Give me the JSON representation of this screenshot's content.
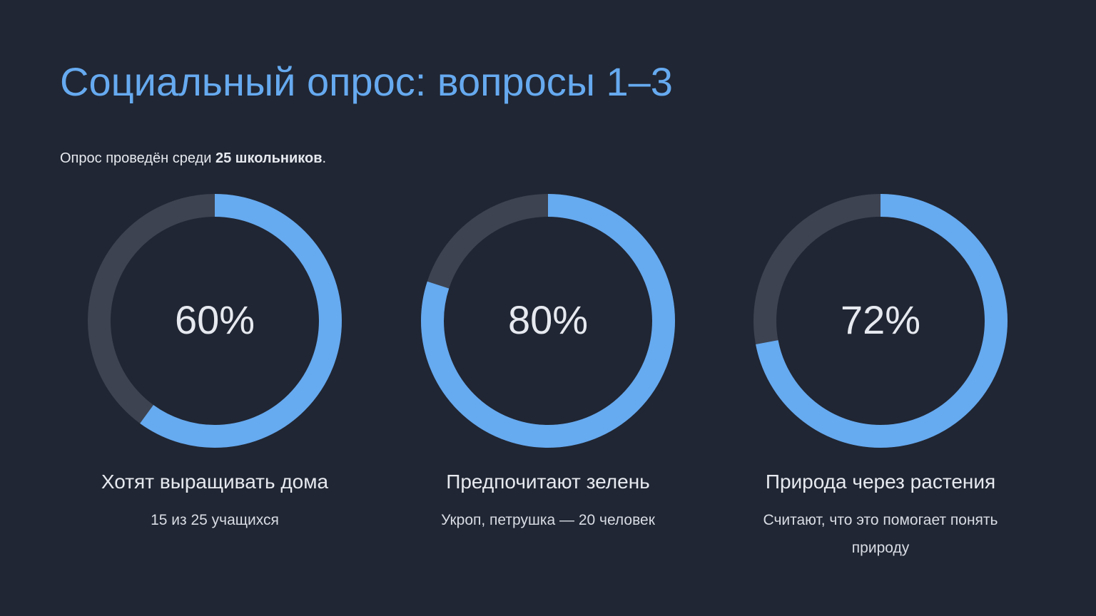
{
  "title": "Социальный опрос: вопросы 1–3",
  "subtitle": {
    "prefix": "Опрос проведён среди",
    "bold": "25 школьников",
    "suffix": "."
  },
  "colors": {
    "accent": "#66aaf0",
    "track": "#3d4350",
    "background": "#202633"
  },
  "chart_data": [
    {
      "type": "pie",
      "title": "Хотят выращивать дома",
      "values": [
        60,
        40
      ],
      "value_label": "60%",
      "caption": "15 из 25 учащихся"
    },
    {
      "type": "pie",
      "title": "Предпочитают зелень",
      "values": [
        80,
        20
      ],
      "value_label": "80%",
      "caption": "Укроп, петрушка — 20 человек"
    },
    {
      "type": "pie",
      "title": "Природа через растения",
      "values": [
        72,
        28
      ],
      "value_label": "72%",
      "caption": "Считают, что это помогает понять природу"
    }
  ]
}
